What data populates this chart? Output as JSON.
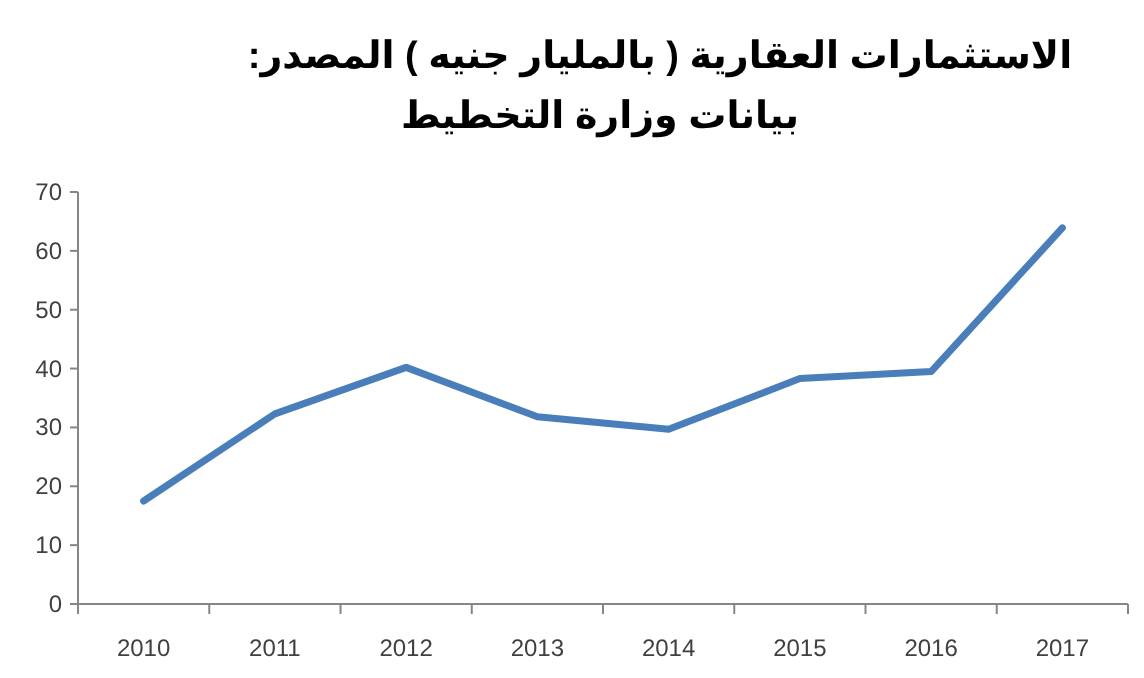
{
  "chart_data": {
    "type": "line",
    "title": "الاستثمارات العقارية ( بالمليار جنيه ) المصدر:",
    "subtitle": "بيانات وزارة التخطيط",
    "categories": [
      "2010",
      "2011",
      "2012",
      "2013",
      "2014",
      "2015",
      "2016",
      "2017"
    ],
    "series": [
      {
        "color": "#4a7ebb",
        "values": [
          17.5,
          32.3,
          40.2,
          31.8,
          29.7,
          38.3,
          39.5,
          63.9
        ]
      }
    ],
    "ylim": [
      0,
      70
    ],
    "yticks": [
      0,
      10,
      20,
      30,
      40,
      50,
      60,
      70
    ],
    "grid": false,
    "marker": "none",
    "line_style": "solid"
  }
}
